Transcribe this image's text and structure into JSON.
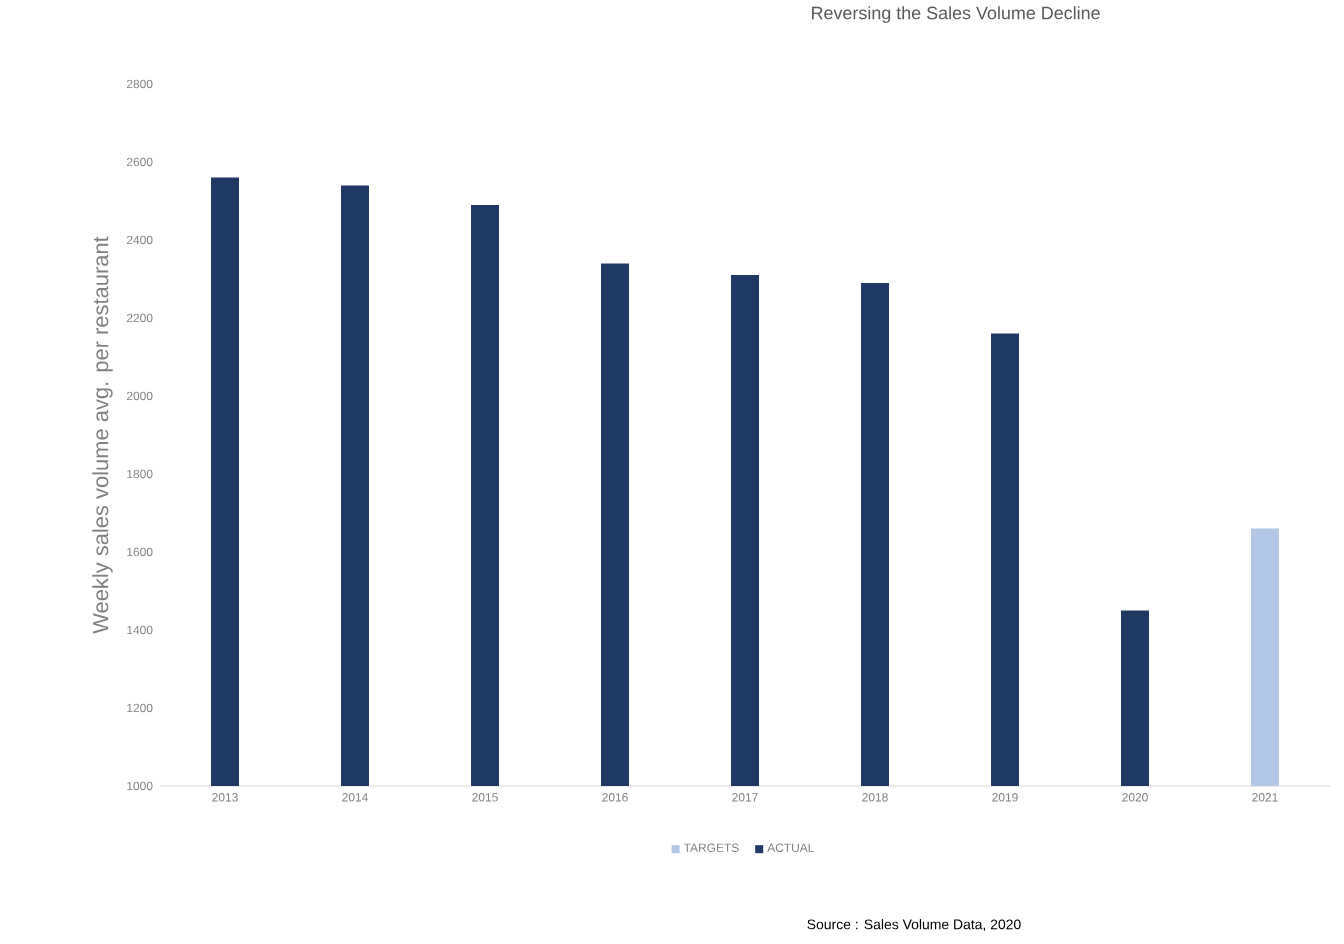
{
  "chart_data": {
    "type": "bar",
    "title": "Reversing the Sales Volume Decline",
    "ylabel": "Weekly sales volume avg. per restaurant",
    "categories": [
      "2013",
      "2014",
      "2015",
      "2016",
      "2017",
      "2018",
      "2019",
      "2020",
      "2021"
    ],
    "series": [
      {
        "name": "TARGETS",
        "color": "#b4c7e7",
        "values": [
          null,
          null,
          null,
          null,
          null,
          null,
          null,
          null,
          1660
        ]
      },
      {
        "name": "ACTUAL",
        "color": "#1f3864",
        "values": [
          2560,
          2540,
          2490,
          2340,
          2310,
          2290,
          2160,
          1450,
          null
        ]
      }
    ],
    "ylim": [
      1000,
      2800
    ],
    "yticks": [
      1000,
      1200,
      1400,
      1600,
      1800,
      2000,
      2200,
      2400,
      2600,
      2800
    ],
    "legend": "bottom",
    "annotations": [
      "Source : Sales Volume Data, 2020"
    ]
  }
}
